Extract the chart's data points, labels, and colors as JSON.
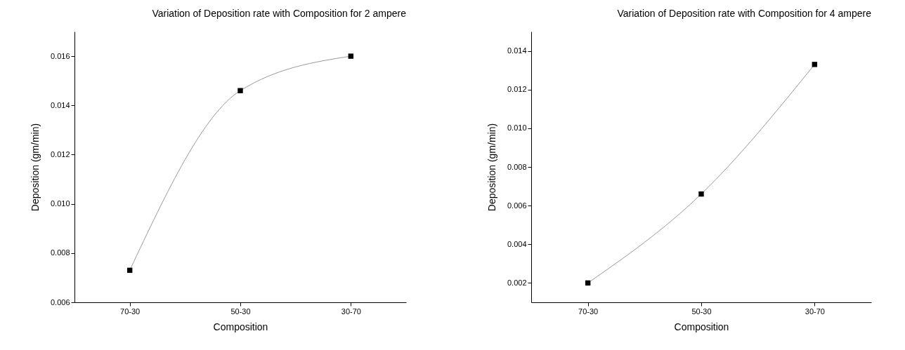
{
  "chart_data": [
    {
      "type": "line",
      "title": "Variation of Deposition rate with Composition for 2 ampere",
      "xlabel": "Composition",
      "ylabel": "Deposition (gm/min)",
      "categories": [
        "70-30",
        "50-30",
        "30-70"
      ],
      "ylim": [
        0.006,
        0.017
      ],
      "yticks": [
        {
          "value": 0.006,
          "label": "0.006"
        },
        {
          "value": 0.008,
          "label": "0.008"
        },
        {
          "value": 0.01,
          "label": "0.010"
        },
        {
          "value": 0.012,
          "label": "0.012"
        },
        {
          "value": 0.014,
          "label": "0.014"
        },
        {
          "value": 0.016,
          "label": "0.016"
        }
      ],
      "series": [
        {
          "type": "line",
          "marker": "none",
          "color": "#999999",
          "values": [
            0.0073,
            0.0146,
            0.016
          ]
        },
        {
          "type": "scatter",
          "marker": "square",
          "color": "#000000",
          "values": [
            0.0073,
            0.0146,
            0.016
          ]
        }
      ]
    },
    {
      "type": "line",
      "title": "Variation of Deposition rate with Composition for 4 ampere",
      "xlabel": "Composition",
      "ylabel": "Deposition (gm/min)",
      "categories": [
        "70-30",
        "50-30",
        "30-70"
      ],
      "ylim": [
        0.001,
        0.015
      ],
      "yticks": [
        {
          "value": 0.002,
          "label": "0.002"
        },
        {
          "value": 0.004,
          "label": "0.004"
        },
        {
          "value": 0.006,
          "label": "0.006"
        },
        {
          "value": 0.008,
          "label": "0.008"
        },
        {
          "value": 0.01,
          "label": "0.010"
        },
        {
          "value": 0.012,
          "label": "0.012"
        },
        {
          "value": 0.014,
          "label": "0.014"
        }
      ],
      "series": [
        {
          "type": "line",
          "marker": "none",
          "color": "#999999",
          "values": [
            0.002,
            0.0066,
            0.0133
          ]
        },
        {
          "type": "scatter",
          "marker": "square",
          "color": "#000000",
          "values": [
            0.002,
            0.0066,
            0.0133
          ]
        }
      ]
    }
  ]
}
